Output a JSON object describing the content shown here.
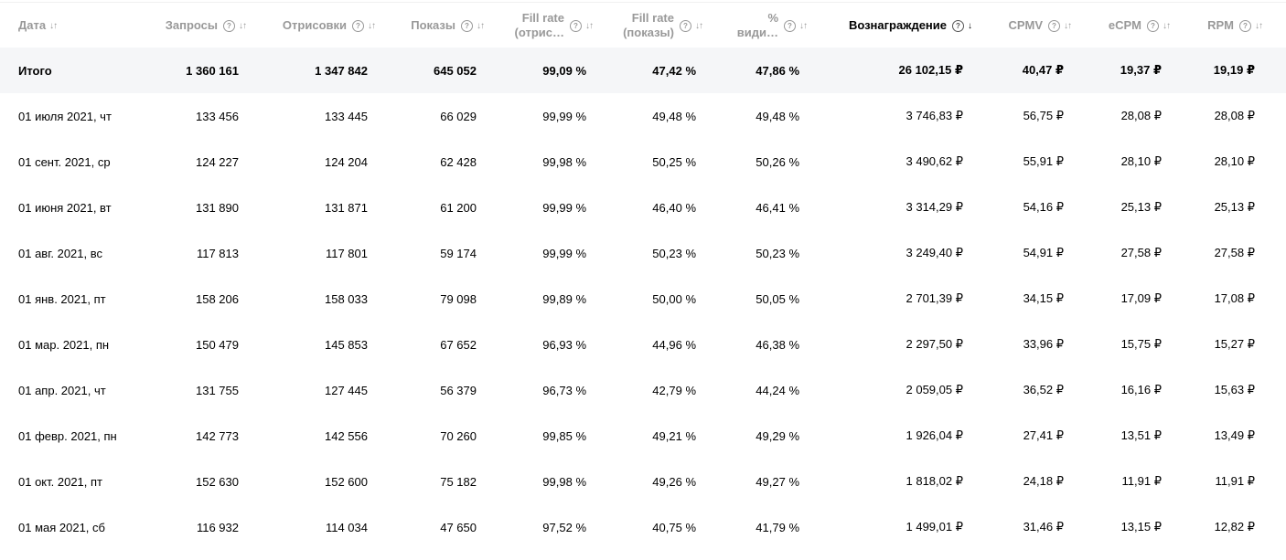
{
  "columns": [
    {
      "label": "Дата",
      "sort": "↓↑",
      "help": false,
      "active": false
    },
    {
      "label": "Запросы",
      "sort": "↓↑",
      "help": true,
      "active": false
    },
    {
      "label": "Отрисовки",
      "sort": "↓↑",
      "help": true,
      "active": false
    },
    {
      "label": "Показы",
      "sort": "↓↑",
      "help": true,
      "active": false
    },
    {
      "label": "Fill rate (отрис…",
      "label_line1": "Fill rate",
      "label_line2": "(отрис…",
      "sort": "↓↑",
      "help": true,
      "active": false
    },
    {
      "label": "Fill rate (показы)",
      "label_line1": "Fill rate",
      "label_line2": "(показы)",
      "sort": "↓↑",
      "help": true,
      "active": false
    },
    {
      "label": "% види…",
      "label_line1": "%",
      "label_line2": "види…",
      "sort": "↓↑",
      "help": true,
      "active": false
    },
    {
      "label": "Вознаграждение",
      "sort": "↓",
      "help": true,
      "active": true
    },
    {
      "label": "CPMV",
      "sort": "↓↑",
      "help": true,
      "active": false
    },
    {
      "label": "eCPM",
      "sort": "↓↑",
      "help": true,
      "active": false
    },
    {
      "label": "RPM",
      "sort": "↓↑",
      "help": true,
      "active": false
    }
  ],
  "total": {
    "label": "Итого",
    "values": [
      "1 360 161",
      "1 347 842",
      "645 052",
      "99,09 %",
      "47,42 %",
      "47,86 %",
      "26 102,15 ₽",
      "40,47 ₽",
      "19,37 ₽",
      "19,19 ₽"
    ]
  },
  "rows": [
    {
      "date": "01 июля 2021, чт",
      "values": [
        "133 456",
        "133 445",
        "66 029",
        "99,99 %",
        "49,48 %",
        "49,48 %",
        "3 746,83 ₽",
        "56,75 ₽",
        "28,08 ₽",
        "28,08 ₽"
      ]
    },
    {
      "date": "01 сент. 2021, ср",
      "values": [
        "124 227",
        "124 204",
        "62 428",
        "99,98 %",
        "50,25 %",
        "50,26 %",
        "3 490,62 ₽",
        "55,91 ₽",
        "28,10 ₽",
        "28,10 ₽"
      ]
    },
    {
      "date": "01 июня 2021, вт",
      "values": [
        "131 890",
        "131 871",
        "61 200",
        "99,99 %",
        "46,40 %",
        "46,41 %",
        "3 314,29 ₽",
        "54,16 ₽",
        "25,13 ₽",
        "25,13 ₽"
      ]
    },
    {
      "date": "01 авг. 2021, вс",
      "values": [
        "117 813",
        "117 801",
        "59 174",
        "99,99 %",
        "50,23 %",
        "50,23 %",
        "3 249,40 ₽",
        "54,91 ₽",
        "27,58 ₽",
        "27,58 ₽"
      ]
    },
    {
      "date": "01 янв. 2021, пт",
      "values": [
        "158 206",
        "158 033",
        "79 098",
        "99,89 %",
        "50,00 %",
        "50,05 %",
        "2 701,39 ₽",
        "34,15 ₽",
        "17,09 ₽",
        "17,08 ₽"
      ]
    },
    {
      "date": "01 мар. 2021, пн",
      "values": [
        "150 479",
        "145 853",
        "67 652",
        "96,93 %",
        "44,96 %",
        "46,38 %",
        "2 297,50 ₽",
        "33,96 ₽",
        "15,75 ₽",
        "15,27 ₽"
      ]
    },
    {
      "date": "01 апр. 2021, чт",
      "values": [
        "131 755",
        "127 445",
        "56 379",
        "96,73 %",
        "42,79 %",
        "44,24 %",
        "2 059,05 ₽",
        "36,52 ₽",
        "16,16 ₽",
        "15,63 ₽"
      ]
    },
    {
      "date": "01 февр. 2021, пн",
      "values": [
        "142 773",
        "142 556",
        "70 260",
        "99,85 %",
        "49,21 %",
        "49,29 %",
        "1 926,04 ₽",
        "27,41 ₽",
        "13,51 ₽",
        "13,49 ₽"
      ]
    },
    {
      "date": "01 окт. 2021, пт",
      "values": [
        "152 630",
        "152 600",
        "75 182",
        "99,98 %",
        "49,26 %",
        "49,27 %",
        "1 818,02 ₽",
        "24,18 ₽",
        "11,91 ₽",
        "11,91 ₽"
      ]
    },
    {
      "date": "01 мая 2021, сб",
      "values": [
        "116 932",
        "114 034",
        "47 650",
        "97,52 %",
        "40,75 %",
        "41,79 %",
        "1 499,01 ₽",
        "31,46 ₽",
        "13,15 ₽",
        "12,82 ₽"
      ]
    }
  ],
  "icons": {
    "help": "question-circle-icon",
    "sort": "sort-arrows-icon",
    "sort_desc": "sort-desc-icon"
  },
  "help_glyph": "?"
}
